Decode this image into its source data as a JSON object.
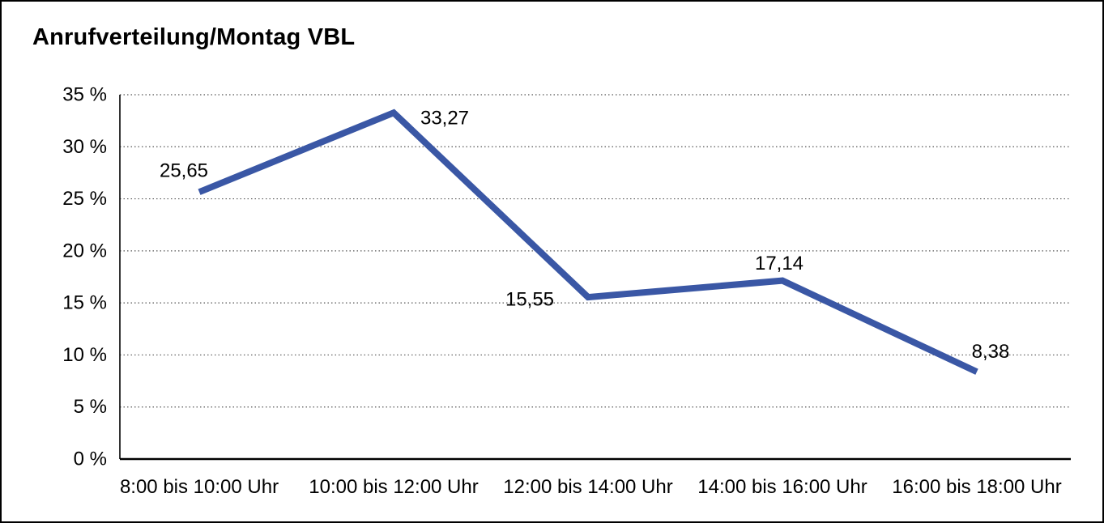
{
  "window": {
    "background_color": "#ffffff",
    "border_color": "#000000"
  },
  "chart_data": {
    "type": "line",
    "title": "Anrufverteilung/Montag VBL",
    "categories": [
      "8:00 bis 10:00 Uhr",
      "10:00 bis 12:00 Uhr",
      "12:00 bis 14:00 Uhr",
      "14:00 bis 16:00 Uhr",
      "16:00 bis 18:00 Uhr"
    ],
    "values": [
      25.65,
      33.27,
      15.55,
      17.14,
      8.38
    ],
    "point_labels": [
      "25,65",
      "33,27",
      "15,55",
      "17,14",
      "8,38"
    ],
    "series_name": "Anrufverteilung Montag VBL",
    "xlabel": "",
    "ylabel": "",
    "ylim": [
      0,
      35
    ],
    "y_ticks": [
      {
        "value": 35,
        "label": "35 %"
      },
      {
        "value": 30,
        "label": "30 %"
      },
      {
        "value": 25,
        "label": "25 %"
      },
      {
        "value": 20,
        "label": "20 %"
      },
      {
        "value": 15,
        "label": "15 %"
      },
      {
        "value": 10,
        "label": "10 %"
      },
      {
        "value": 5,
        "label": "5 %"
      },
      {
        "value": 0,
        "label": "0 %"
      }
    ],
    "grid": "dotted-horizontal",
    "legend_position": "none",
    "line_color": "#3A57A5",
    "gridline_color": "#555555",
    "axis_color": "#000000",
    "text_color": "#000000"
  }
}
